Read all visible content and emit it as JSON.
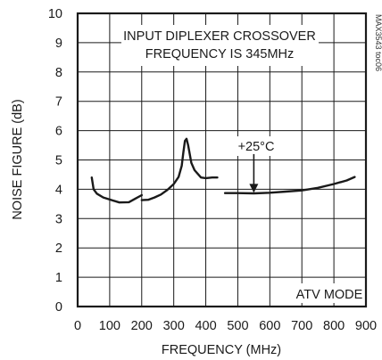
{
  "chart_data": {
    "type": "line",
    "title": "",
    "xlabel": "FREQUENCY (MHz)",
    "ylabel": "NOISE FIGURE (dB)",
    "xlim": [
      0,
      900
    ],
    "ylim": [
      0,
      10
    ],
    "xticks": [
      0,
      100,
      200,
      300,
      400,
      500,
      600,
      700,
      800,
      900
    ],
    "yticks": [
      0,
      1,
      2,
      3,
      4,
      5,
      6,
      7,
      8,
      9,
      10
    ],
    "grid": true,
    "legend": "none",
    "series": [
      {
        "x": [
          44,
          50,
          60,
          80,
          100,
          130,
          160,
          180,
          200
        ],
        "y": [
          4.4,
          4.0,
          3.85,
          3.72,
          3.65,
          3.55,
          3.56,
          3.68,
          3.8
        ]
      },
      {
        "x": [
          200,
          220,
          240,
          260,
          280,
          300,
          315,
          325,
          330,
          335,
          340,
          345,
          355,
          365,
          385,
          400,
          420,
          436
        ],
        "y": [
          3.63,
          3.64,
          3.72,
          3.82,
          3.98,
          4.18,
          4.42,
          4.8,
          5.25,
          5.65,
          5.72,
          5.5,
          4.9,
          4.65,
          4.4,
          4.38,
          4.4,
          4.4
        ]
      },
      {
        "x": [
          460,
          500,
          550,
          600,
          650,
          700,
          750,
          800,
          840,
          865
        ],
        "y": [
          3.87,
          3.87,
          3.86,
          3.88,
          3.92,
          3.96,
          4.05,
          4.18,
          4.3,
          4.42
        ]
      }
    ],
    "annotations": {
      "crossover_line1": "INPUT DIPLEXER CROSSOVER",
      "crossover_line2": "FREQUENCY IS 345MHz",
      "temperature": "+25°C",
      "mode": "ATV MODE",
      "figure_id": "MAX3543 toc06"
    },
    "arrow": {
      "x": 550,
      "y_from": 5.2,
      "y_to": 3.85
    }
  }
}
